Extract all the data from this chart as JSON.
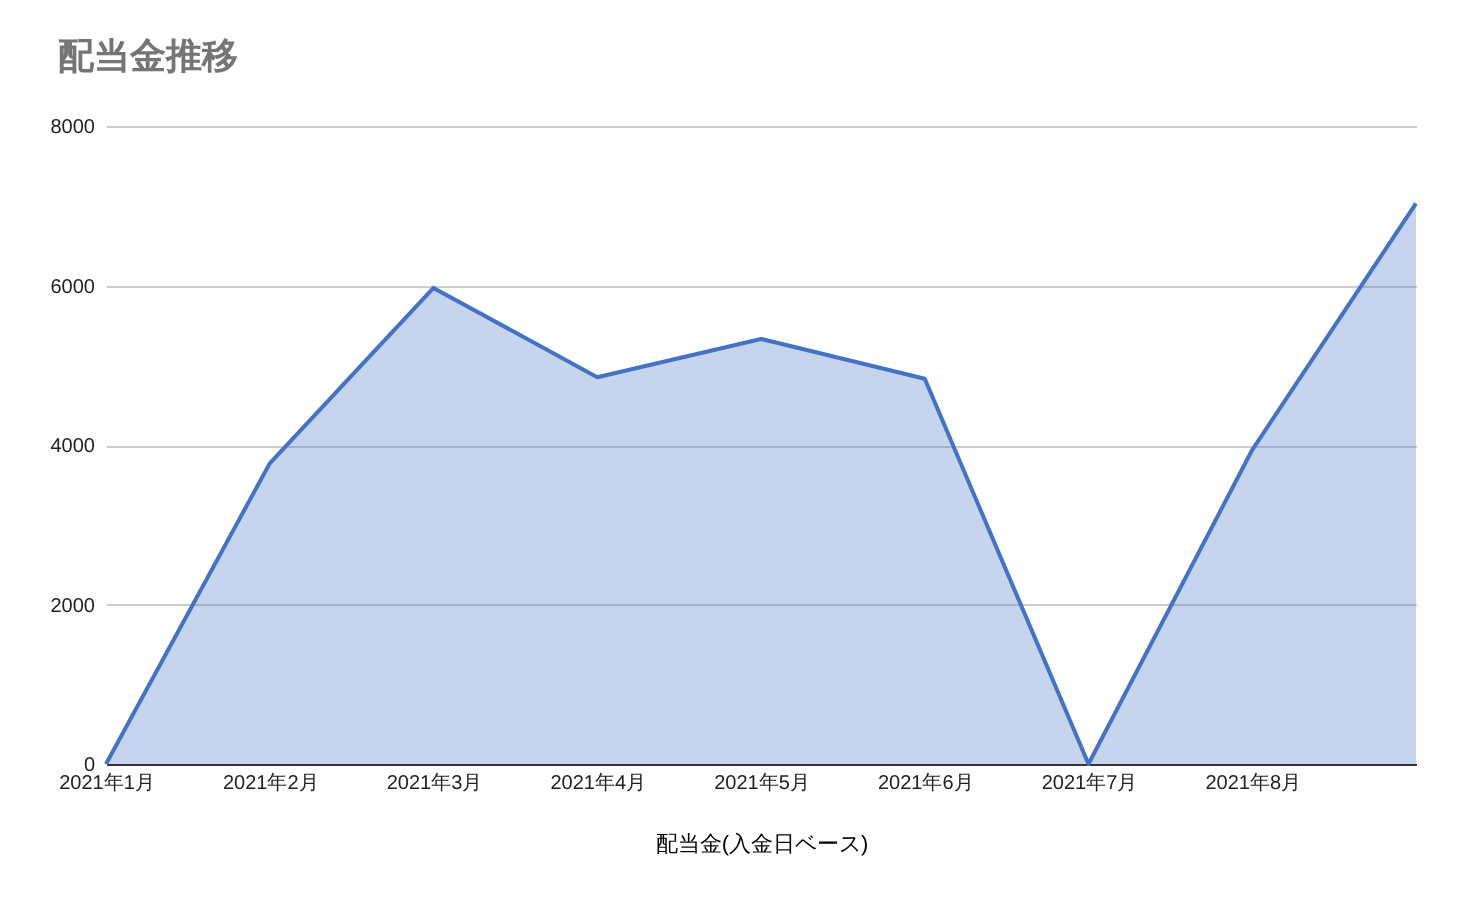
{
  "chart_data": {
    "type": "area",
    "title": "配当金推移",
    "xlabel": "配当金(入金日ベース)",
    "categories": [
      "2021年1月",
      "2021年2月",
      "2021年3月",
      "2021年4月",
      "2021年5月",
      "2021年6月",
      "2021年7月",
      "2021年8月",
      null
    ],
    "series": [
      {
        "color": "#4472c4",
        "values": [
          0,
          3770,
          5970,
          4850,
          5330,
          4830,
          0,
          3940,
          7030
        ]
      }
    ],
    "ylim": [
      0,
      8000
    ],
    "yticks": [
      0,
      2000,
      4000,
      6000,
      8000
    ],
    "grid": "y"
  }
}
